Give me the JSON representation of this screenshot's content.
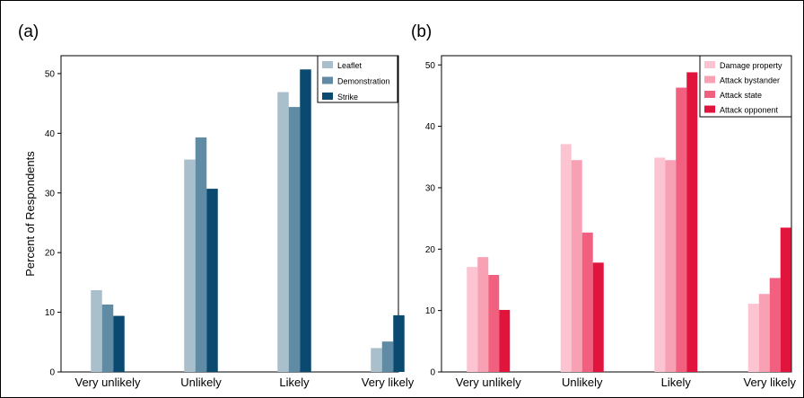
{
  "panels": [
    {
      "label": "(a)"
    },
    {
      "label": "(b)"
    }
  ],
  "chart_data": [
    {
      "type": "bar",
      "panel": "(a)",
      "categories": [
        "Very unlikely",
        "Unlikely",
        "Likely",
        "Very likely"
      ],
      "ylabel": "Percent of Respondents",
      "xlabel": "",
      "ylim": [
        0,
        53
      ],
      "yticks": [
        0,
        10,
        20,
        30,
        40,
        50
      ],
      "grid": false,
      "legend_position": "top-right",
      "series": [
        {
          "name": "Leaflet",
          "color": "#a9bfcc",
          "values": [
            13.7,
            35.6,
            46.9,
            4.0
          ]
        },
        {
          "name": "Demonstration",
          "color": "#5f8ba5",
          "values": [
            11.3,
            39.3,
            44.4,
            5.1
          ]
        },
        {
          "name": "Strike",
          "color": "#0b4a70",
          "values": [
            9.4,
            30.7,
            50.7,
            9.5
          ]
        }
      ]
    },
    {
      "type": "bar",
      "panel": "(b)",
      "categories": [
        "Very unlikely",
        "Unlikely",
        "Likely",
        "Very likely"
      ],
      "ylabel": "",
      "xlabel": "",
      "ylim": [
        0,
        51.5
      ],
      "yticks": [
        0,
        10,
        20,
        30,
        40,
        50
      ],
      "grid": false,
      "legend_position": "top-right",
      "series": [
        {
          "name": "Damage property",
          "color": "#fcc3d0",
          "values": [
            17.1,
            37.1,
            34.9,
            11.1
          ]
        },
        {
          "name": "Attack bystander",
          "color": "#f8a1b4",
          "values": [
            18.7,
            34.5,
            34.5,
            12.7
          ]
        },
        {
          "name": "Attack state",
          "color": "#f1607f",
          "values": [
            15.8,
            22.7,
            46.3,
            15.3
          ]
        },
        {
          "name": "Attack opponent",
          "color": "#e0143c",
          "values": [
            10.1,
            17.8,
            48.8,
            23.5
          ]
        }
      ]
    }
  ]
}
